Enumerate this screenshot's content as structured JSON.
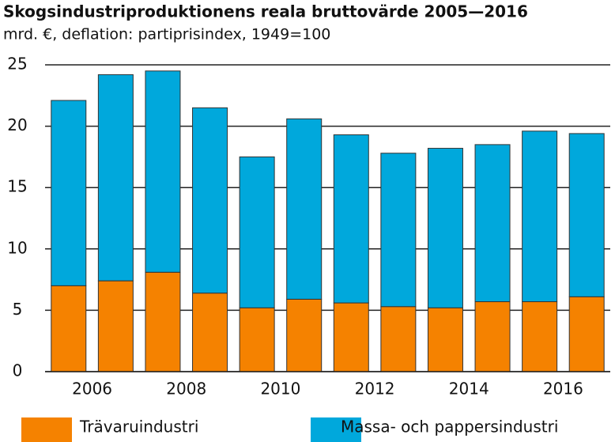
{
  "chart_data": {
    "type": "stacked_bar",
    "title": "Skogsindustriproduktionens reala bruttovärde 2005—2016",
    "subtitle": "mrd. €, deflation: partiprisindex, 1949=100",
    "categories": [
      null,
      "2006",
      null,
      "2008",
      null,
      "2010",
      null,
      "2012",
      null,
      "2014",
      null,
      "2016"
    ],
    "series": [
      {
        "name": "Trävaruindustri",
        "color": "#f58200",
        "values": [
          7.0,
          7.4,
          8.1,
          6.4,
          5.2,
          5.9,
          5.6,
          5.3,
          5.2,
          5.7,
          5.7,
          6.1
        ]
      },
      {
        "name": "Massa- och pappersindustri",
        "color": "#00a8dc",
        "values": [
          15.1,
          16.8,
          16.4,
          15.1,
          12.3,
          14.7,
          13.7,
          12.5,
          13.0,
          12.8,
          13.9,
          13.3
        ]
      }
    ],
    "ylim": [
      0,
      25
    ],
    "yticks": [
      0,
      5,
      10,
      15,
      20,
      25
    ],
    "grid": true,
    "legend": "bottom"
  }
}
